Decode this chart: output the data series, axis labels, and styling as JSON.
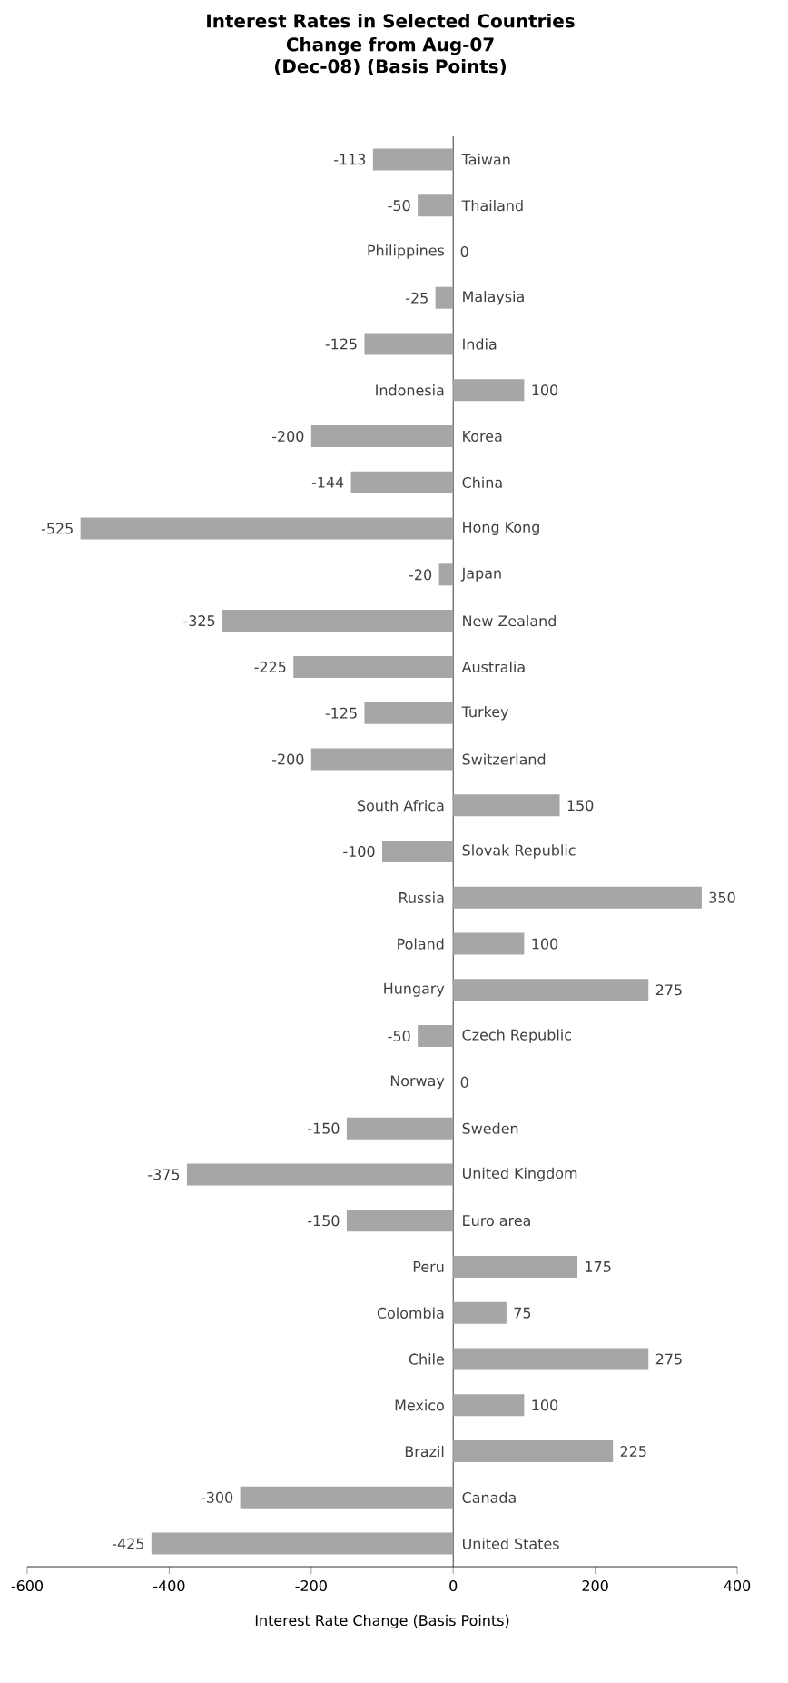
{
  "chart_data": {
    "type": "bar",
    "orientation": "horizontal",
    "title": "Interest Rates in Selected Countries",
    "subtitle": "Change from Aug-07 (Dec-08) (Basis Points)",
    "xlabel": "Interest Rate Change (Basis Points)",
    "categories": [
      "Taiwan",
      "Thailand",
      "Philippines",
      "Malaysia",
      "India",
      "Indonesia",
      "Korea",
      "China",
      "Hong Kong",
      "Japan",
      "New Zealand",
      "Australia",
      "Turkey",
      "Switzerland",
      "South Africa",
      "Slovak Republic",
      "Russia",
      "Poland",
      "Hungary",
      "Czech Republic",
      "Norway",
      "Sweden",
      "United Kingdom",
      "Euro area",
      "Peru",
      "Colombia",
      "Chile",
      "Mexico",
      "Brazil",
      "Canada",
      "United States"
    ],
    "values": [
      -113,
      -50,
      0,
      -25,
      -125,
      100,
      -200,
      -144,
      -525,
      -20,
      -325,
      -225,
      -125,
      -200,
      150,
      -100,
      350,
      100,
      275,
      -50,
      0,
      -150,
      -375,
      -150,
      175,
      75,
      275,
      100,
      225,
      -300,
      -425
    ],
    "value_labels": [
      "-113",
      "-50",
      "0",
      "-25",
      "-125",
      "100",
      "-200",
      "-144",
      "-525",
      "-20",
      "-325",
      "-225",
      "-125",
      "-200",
      "150",
      "-100",
      "350",
      "100",
      "275",
      "-50",
      "0",
      "-150",
      "-375",
      "-150",
      "175",
      "75",
      "275",
      "100",
      "225",
      "-300",
      "-425"
    ],
    "color": "#a6a6a6",
    "xlim": [
      -600,
      400
    ],
    "xticks": [
      -600,
      -400,
      -200,
      0,
      200,
      400
    ],
    "grid": false
  }
}
